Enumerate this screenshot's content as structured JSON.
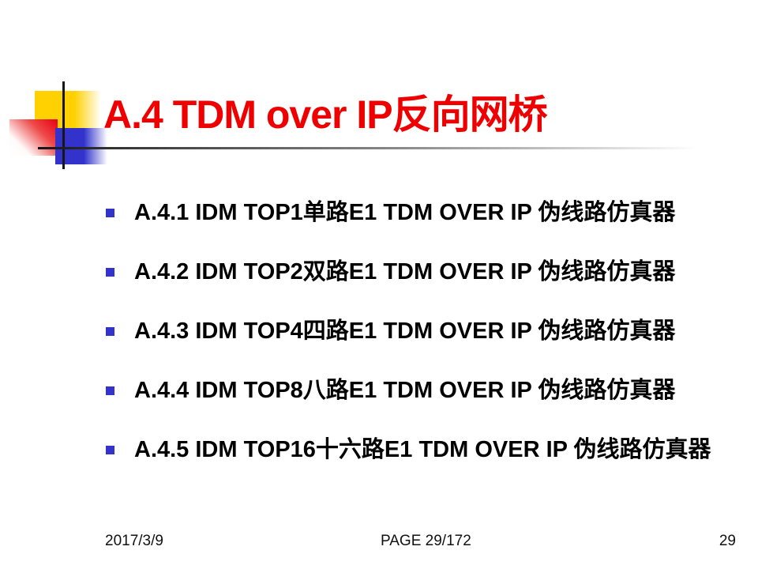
{
  "slide": {
    "title": "A.4 TDM over IP反向网桥",
    "bullets": [
      "A.4.1 IDM TOP1单路E1 TDM OVER IP 伪线路仿真器",
      "A.4.2 IDM TOP2双路E1 TDM OVER IP 伪线路仿真器",
      "A.4.3 IDM TOP4四路E1 TDM OVER IP 伪线路仿真器",
      "A.4.4 IDM TOP8八路E1 TDM OVER IP 伪线路仿真器",
      "A.4.5 IDM TOP16十六路E1 TDM OVER IP 伪线路仿真器"
    ],
    "footer": {
      "date": "2017/3/9",
      "page_label": "PAGE 29/172",
      "slide_number": "29"
    },
    "colors": {
      "title_red": "#ee0000",
      "bullet_blue": "#3333cc",
      "logo_yellow": "#ffd100",
      "logo_red": "#e60012",
      "logo_blue": "#3333cc",
      "crosshair_dark": "#161616"
    }
  }
}
